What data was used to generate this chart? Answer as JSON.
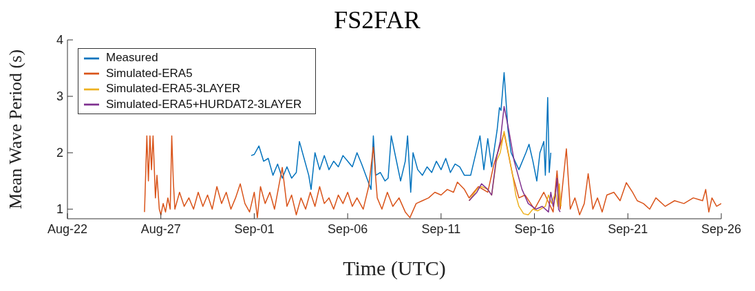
{
  "chart_data": {
    "type": "line",
    "title": "FS2FAR",
    "xlabel": "Time (UTC)",
    "ylabel": "Mean Wave Period (s)",
    "xlim": [
      "--08-22",
      "--09-26"
    ],
    "xticks": [
      {
        "value": "--08-22",
        "label": "Aug-22"
      },
      {
        "value": "--08-27",
        "label": "Aug-27"
      },
      {
        "value": "--09-01",
        "label": "Sep-01"
      },
      {
        "value": "--09-06",
        "label": "Sep-06"
      },
      {
        "value": "--09-11",
        "label": "Sep-11"
      },
      {
        "value": "--09-16",
        "label": "Sep-16"
      },
      {
        "value": "--09-21",
        "label": "Sep-21"
      },
      {
        "value": "--09-26",
        "label": "Sep-26"
      }
    ],
    "ylim": [
      0.83,
      4
    ],
    "yticks": [
      1,
      2,
      3,
      4
    ],
    "grid": false,
    "legend": "top left",
    "series": [
      {
        "name": "Measured",
        "color": "#0072bd",
        "x": [
          "--08-31T20:00",
          "--09-01T00:00",
          "--09-01T06:00",
          "--09-01T12:00",
          "--09-01T18:00",
          "--09-02T00:00",
          "--09-02T06:00",
          "--09-02T12:00",
          "--09-02T18:00",
          "--09-03T00:00",
          "--09-03T06:00",
          "--09-03T10:00",
          "--09-03T16:00",
          "--09-03T22:00",
          "--09-04T01:00",
          "--09-04T06:00",
          "--09-04T12:00",
          "--09-04T18:00",
          "--09-05T00:00",
          "--09-05T06:00",
          "--09-05T12:00",
          "--09-05T18:00",
          "--09-06T00:00",
          "--09-06T06:00",
          "--09-06T12:00",
          "--09-06T18:00",
          "--09-07T02:00",
          "--09-07T06:00",
          "--09-07T09:00",
          "--09-07T12:00",
          "--09-07T18:00",
          "--09-08T00:00",
          "--09-08T04:00",
          "--09-08T08:00",
          "--09-08T14:00",
          "--09-08T20:00",
          "--09-09T02:00",
          "--09-09T05:00",
          "--09-09T09:00",
          "--09-09T12:00",
          "--09-09T18:00",
          "--09-10T00:00",
          "--09-10T06:00",
          "--09-10T12:00",
          "--09-10T18:00",
          "--09-11T00:00",
          "--09-11T06:00",
          "--09-11T12:00",
          "--09-11T18:00",
          "--09-12T00:00",
          "--09-12T06:00",
          "--09-12T14:00",
          "--09-13T02:00",
          "--09-13T07:00",
          "--09-13T12:00",
          "--09-13T17:00",
          "--09-14T00:00",
          "--09-14T03:00",
          "--09-14T05:00",
          "--09-14T09:00",
          "--09-14T14:00",
          "--09-14T18:00",
          "--09-14T23:00",
          "--09-15T04:00",
          "--09-15T13:00",
          "--09-15T17:00",
          "--09-15T22:00",
          "--09-16T03:00",
          "--09-16T07:00",
          "--09-16T12:00",
          "--09-16T14:00",
          "--09-16T17:00",
          "--09-16T19:00",
          "--09-16T21:00"
        ],
        "values": [
          1.95,
          1.97,
          2.12,
          1.85,
          1.9,
          1.6,
          1.8,
          1.55,
          1.75,
          1.55,
          1.65,
          2.2,
          1.9,
          1.6,
          1.35,
          2.0,
          1.7,
          1.95,
          1.7,
          1.85,
          1.75,
          1.95,
          1.85,
          1.75,
          2.0,
          1.8,
          1.5,
          1.35,
          2.3,
          1.6,
          1.65,
          1.5,
          1.55,
          2.3,
          1.9,
          1.5,
          1.85,
          2.3,
          1.3,
          2.0,
          1.7,
          1.6,
          1.75,
          1.65,
          1.85,
          1.7,
          1.9,
          1.65,
          1.8,
          1.75,
          1.6,
          1.6,
          2.3,
          1.7,
          2.25,
          1.75,
          2.4,
          2.8,
          2.75,
          3.42,
          2.4,
          2.0,
          1.85,
          1.7,
          2.0,
          2.15,
          1.85,
          1.5,
          2.0,
          2.2,
          1.6,
          2.98,
          1.65,
          2.0
        ]
      },
      {
        "name": "Simulated-ERA5",
        "color": "#d95319",
        "x": [
          "--08-26T03:00",
          "--08-26T06:00",
          "--08-26T08:00",
          "--08-26T10:00",
          "--08-26T12:00",
          "--08-26T14:00",
          "--08-26T17:00",
          "--08-26T19:00",
          "--08-26T22:00",
          "--08-27T00:00",
          "--08-27T03:00",
          "--08-27T06:00",
          "--08-27T09:00",
          "--08-27T12:00",
          "--08-27T14:00",
          "--08-27T16:00",
          "--08-27T18:00",
          "--08-28T00:00",
          "--08-28T06:00",
          "--08-28T12:00",
          "--08-28T18:00",
          "--08-29T00:00",
          "--08-29T06:00",
          "--08-29T12:00",
          "--08-29T18:00",
          "--08-30T00:00",
          "--08-30T06:00",
          "--08-30T12:00",
          "--08-30T18:00",
          "--08-31T00:00",
          "--08-31T06:00",
          "--08-31T12:00",
          "--08-31T18:00",
          "--09-01T00:00",
          "--09-01T04:00",
          "--09-01T08:00",
          "--09-01T14:00",
          "--09-01T20:00",
          "--09-02T02:00",
          "--09-02T12:00",
          "--09-02T18:00",
          "--09-03T00:00",
          "--09-03T06:00",
          "--09-03T12:00",
          "--09-03T18:00",
          "--09-04T00:00",
          "--09-04T06:00",
          "--09-04T12:00",
          "--09-04T18:00",
          "--09-05T00:00",
          "--09-05T06:00",
          "--09-05T12:00",
          "--09-05T18:00",
          "--09-06T00:00",
          "--09-06T06:00",
          "--09-06T12:00",
          "--09-06T20:00",
          "--09-07T03:00",
          "--09-07T09:00",
          "--09-07T14:00",
          "--09-07T20:00",
          "--09-08T03:00",
          "--09-08T10:00",
          "--09-08T18:00",
          "--09-09T02:00",
          "--09-09T08:00",
          "--09-09T16:00",
          "--09-10T00:00",
          "--09-10T08:00",
          "--09-10T16:00",
          "--09-11T00:00",
          "--09-11T08:00",
          "--09-11T16:00",
          "--09-11T21:00",
          "--09-12T06:00",
          "--09-12T12:00",
          "--09-13T00:00",
          "--09-13T12:00",
          "--09-13T20:00",
          "--09-14T09:00",
          "--09-14T20:00",
          "--09-15T04:00",
          "--09-15T12:00",
          "--09-16T00:00",
          "--09-16T12:00",
          "--09-17T00:00",
          "--09-17T05:00",
          "--09-17T09:00",
          "--09-17T17:00",
          "--09-17T22:00",
          "--09-18T04:00",
          "--09-18T10:00",
          "--09-18T16:00",
          "--09-18T21:00",
          "--09-19T03:00",
          "--09-19T09:00",
          "--09-19T15:00",
          "--09-19T21:00",
          "--09-20T06:00",
          "--09-20T14:00",
          "--09-20T22:00",
          "--09-21T06:00",
          "--09-21T12:00",
          "--09-21T20:00",
          "--09-22T04:00",
          "--09-22T12:00",
          "--09-23T00:00",
          "--09-23T12:00",
          "--09-24T00:00",
          "--09-24T12:00",
          "--09-25T00:00",
          "--09-25T04:00",
          "--09-25T08:00",
          "--09-25T12:00",
          "--09-25T18:00",
          "--09-26T00:00"
        ],
        "values": [
          0.95,
          2.3,
          1.5,
          2.3,
          1.7,
          2.3,
          1.2,
          1.6,
          1.0,
          0.9,
          1.1,
          0.95,
          1.2,
          1.0,
          2.3,
          1.5,
          1.0,
          1.3,
          1.05,
          1.2,
          1.0,
          1.3,
          1.05,
          1.25,
          1.0,
          1.4,
          1.1,
          1.3,
          1.0,
          1.2,
          1.45,
          1.1,
          0.95,
          1.3,
          0.85,
          1.4,
          1.1,
          1.3,
          1.0,
          1.74,
          1.05,
          1.25,
          0.9,
          1.2,
          1.0,
          1.3,
          1.05,
          1.4,
          1.1,
          1.2,
          1.0,
          1.25,
          1.1,
          1.3,
          1.05,
          1.2,
          1.0,
          1.4,
          2.1,
          1.2,
          1.0,
          1.3,
          1.05,
          1.2,
          0.95,
          0.85,
          1.1,
          1.15,
          1.2,
          1.3,
          1.25,
          1.35,
          1.3,
          1.48,
          1.35,
          1.2,
          1.4,
          1.3,
          1.8,
          2.35,
          1.6,
          1.2,
          1.25,
          1.0,
          1.3,
          0.95,
          1.68,
          1.0,
          2.07,
          1.0,
          1.2,
          0.9,
          1.1,
          1.63,
          1.0,
          1.2,
          0.95,
          1.25,
          1.3,
          1.15,
          1.47,
          1.3,
          1.15,
          1.1,
          1.0,
          1.2,
          1.05,
          1.15,
          1.1,
          1.2,
          1.15,
          1.35,
          0.95,
          1.2,
          1.05,
          1.1
        ]
      },
      {
        "name": "Simulated-ERA5-3LAYER",
        "color": "#edb120",
        "x": [
          "--09-12T12:00",
          "--09-12T22:00",
          "--09-13T04:00",
          "--09-13T12:00",
          "--09-13T17:00",
          "--09-13T23:00",
          "--09-14T04:00",
          "--09-14T09:00",
          "--09-14T13:00",
          "--09-14T20:00",
          "--09-15T00:00",
          "--09-15T04:00",
          "--09-15T10:00",
          "--09-15T16:00",
          "--09-15T22:00",
          "--09-16T04:00",
          "--09-16T14:00",
          "--09-16T18:00",
          "--09-16T22:00",
          "--09-17T03:00",
          "--09-17T06:00",
          "--09-17T08:00",
          "--09-17T10:00"
        ],
        "values": [
          1.15,
          1.35,
          1.4,
          1.35,
          1.25,
          1.85,
          2.0,
          2.38,
          2.1,
          1.6,
          1.25,
          1.05,
          0.92,
          0.9,
          1.0,
          0.97,
          1.05,
          1.25,
          1.1,
          1.3,
          1.05,
          1.45,
          1.05
        ]
      },
      {
        "name": "Simulated-ERA5+HURDAT2-3LAYER",
        "color": "#7e2f8e",
        "x": [
          "--09-12T12:00",
          "--09-12T22:00",
          "--09-13T04:00",
          "--09-13T12:00",
          "--09-13T17:00",
          "--09-13T23:00",
          "--09-14T04:00",
          "--09-14T09:00",
          "--09-14T15:00",
          "--09-14T22:00",
          "--09-15T03:00",
          "--09-15T08:00",
          "--09-15T16:00",
          "--09-16T02:00",
          "--09-16T10:00",
          "--09-16T18:00",
          "--09-16T21:00",
          "--09-17T00:00",
          "--09-17T03:00",
          "--09-17T05:00",
          "--09-17T07:00",
          "--09-17T09:00"
        ],
        "values": [
          1.15,
          1.3,
          1.45,
          1.35,
          1.25,
          1.9,
          2.2,
          2.82,
          2.4,
          1.85,
          1.6,
          1.35,
          1.1,
          1.0,
          1.05,
          0.95,
          1.3,
          1.05,
          1.25,
          1.55,
          1.0,
          0.95
        ]
      }
    ]
  }
}
